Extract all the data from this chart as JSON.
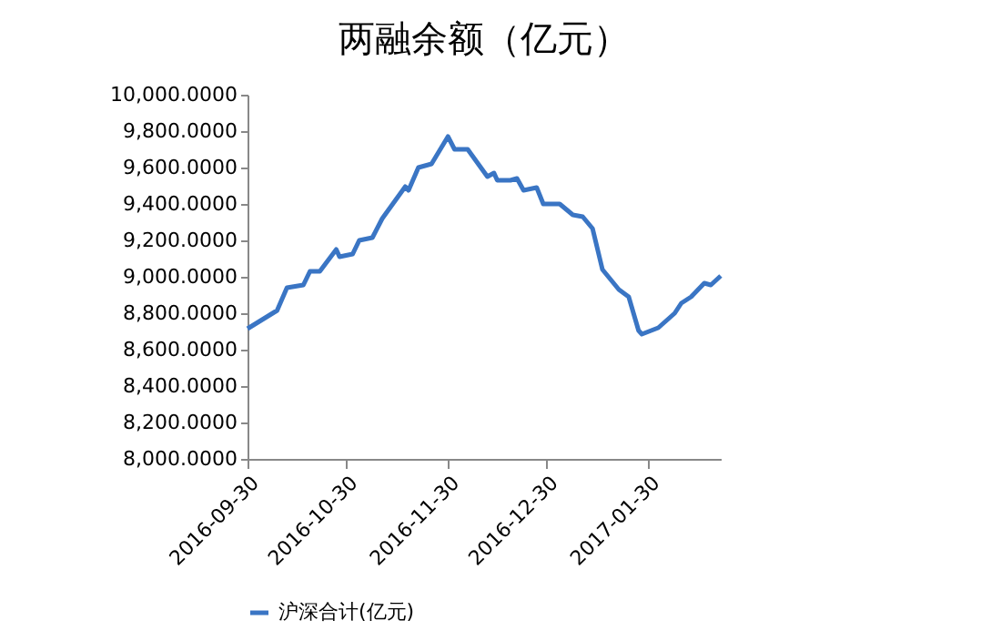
{
  "chart_data": {
    "type": "line",
    "title": "两融余额（亿元）",
    "x": [
      "2016-09-30",
      "2016-10-09",
      "2016-10-12",
      "2016-10-17",
      "2016-10-19",
      "2016-10-22",
      "2016-10-27",
      "2016-10-28",
      "2016-11-01",
      "2016-11-03",
      "2016-11-07",
      "2016-11-10",
      "2016-11-17",
      "2016-11-18",
      "2016-11-21",
      "2016-11-25",
      "2016-11-30",
      "2016-12-02",
      "2016-12-06",
      "2016-12-12",
      "2016-12-14",
      "2016-12-15",
      "2016-12-19",
      "2016-12-21",
      "2016-12-23",
      "2016-12-27",
      "2016-12-29",
      "2017-01-03",
      "2017-01-07",
      "2017-01-10",
      "2017-01-13",
      "2017-01-16",
      "2017-01-21",
      "2017-01-24",
      "2017-01-27",
      "2017-01-28",
      "2017-02-02",
      "2017-02-07",
      "2017-02-09",
      "2017-02-12",
      "2017-02-16",
      "2017-02-18",
      "2017-02-21"
    ],
    "series": [
      {
        "name": "沪深合计(亿元)",
        "color": "#3a75c4",
        "values": [
          8715,
          8815,
          8940,
          8955,
          9030,
          9030,
          9150,
          9110,
          9125,
          9200,
          9215,
          9320,
          9495,
          9475,
          9600,
          9620,
          9770,
          9700,
          9700,
          9550,
          9570,
          9530,
          9530,
          9540,
          9475,
          9490,
          9400,
          9400,
          9340,
          9330,
          9265,
          9040,
          8930,
          8890,
          8705,
          8685,
          8720,
          8800,
          8855,
          8890,
          8965,
          8955,
          9005
        ]
      }
    ],
    "xlim": [
      "2016-09-30",
      "2017-02-21"
    ],
    "xticks": [
      "2016-09-30",
      "2016-10-30",
      "2016-11-30",
      "2016-12-30",
      "2017-01-30"
    ],
    "ylim": [
      8000,
      10000
    ],
    "yticks": [
      {
        "value": 8000,
        "label": "8,000.0000"
      },
      {
        "value": 8200,
        "label": "8,200.0000"
      },
      {
        "value": 8400,
        "label": "8,400.0000"
      },
      {
        "value": 8600,
        "label": "8,600.0000"
      },
      {
        "value": 8800,
        "label": "8,800.0000"
      },
      {
        "value": 9000,
        "label": "9,000.0000"
      },
      {
        "value": 9200,
        "label": "9,200.0000"
      },
      {
        "value": 9400,
        "label": "9,400.0000"
      },
      {
        "value": 9600,
        "label": "9,600.0000"
      },
      {
        "value": 9800,
        "label": "9,800.0000"
      },
      {
        "value": 10000,
        "label": "10,000.0000"
      }
    ],
    "grid": false,
    "legend": "bottom",
    "marker": "none",
    "line_style": "solid"
  }
}
